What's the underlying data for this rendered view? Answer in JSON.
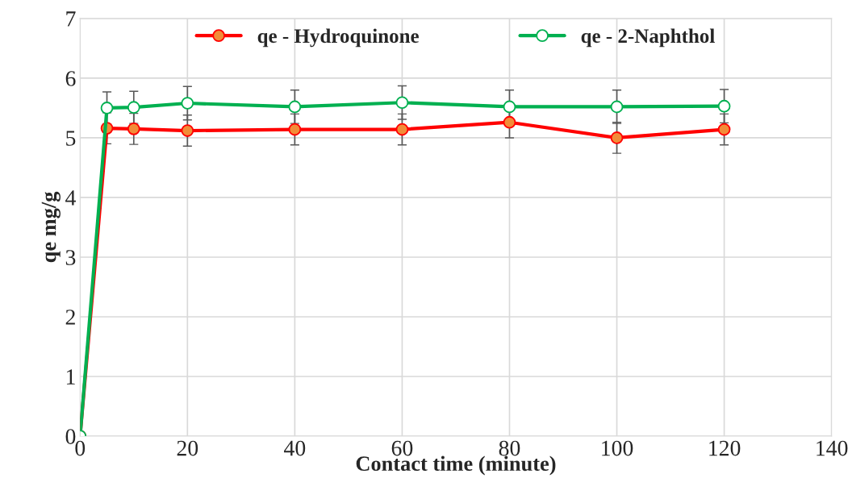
{
  "chart_data": {
    "type": "line",
    "xlabel": "Contact time (minute)",
    "ylabel": "qe mg/g",
    "x": [
      0,
      5,
      10,
      20,
      40,
      60,
      80,
      100,
      120
    ],
    "series": [
      {
        "name": "qe - Hydroquinone",
        "color": "#ff0000",
        "values": [
          0,
          5.16,
          5.15,
          5.12,
          5.14,
          5.14,
          5.26,
          5.0,
          5.14
        ],
        "errors": [
          null,
          0.26,
          0.26,
          0.26,
          0.26,
          0.26,
          0.26,
          0.26,
          0.26
        ]
      },
      {
        "name": "qe - 2-Naphthol",
        "color": "#00b050",
        "values": [
          0,
          5.5,
          5.51,
          5.58,
          5.52,
          5.59,
          5.52,
          5.52,
          5.53
        ],
        "errors": [
          null,
          0.27,
          0.27,
          0.28,
          0.28,
          0.28,
          0.28,
          0.28,
          0.28
        ]
      }
    ],
    "xlim": [
      0,
      140
    ],
    "xticks": [
      0,
      20,
      40,
      60,
      80,
      100,
      120,
      140
    ],
    "ylim": [
      0,
      7
    ],
    "yticks": [
      0,
      1,
      2,
      3,
      4,
      5,
      6,
      7
    ],
    "grid": true,
    "legend": "top",
    "marker": "circle",
    "line_style": "solid"
  }
}
